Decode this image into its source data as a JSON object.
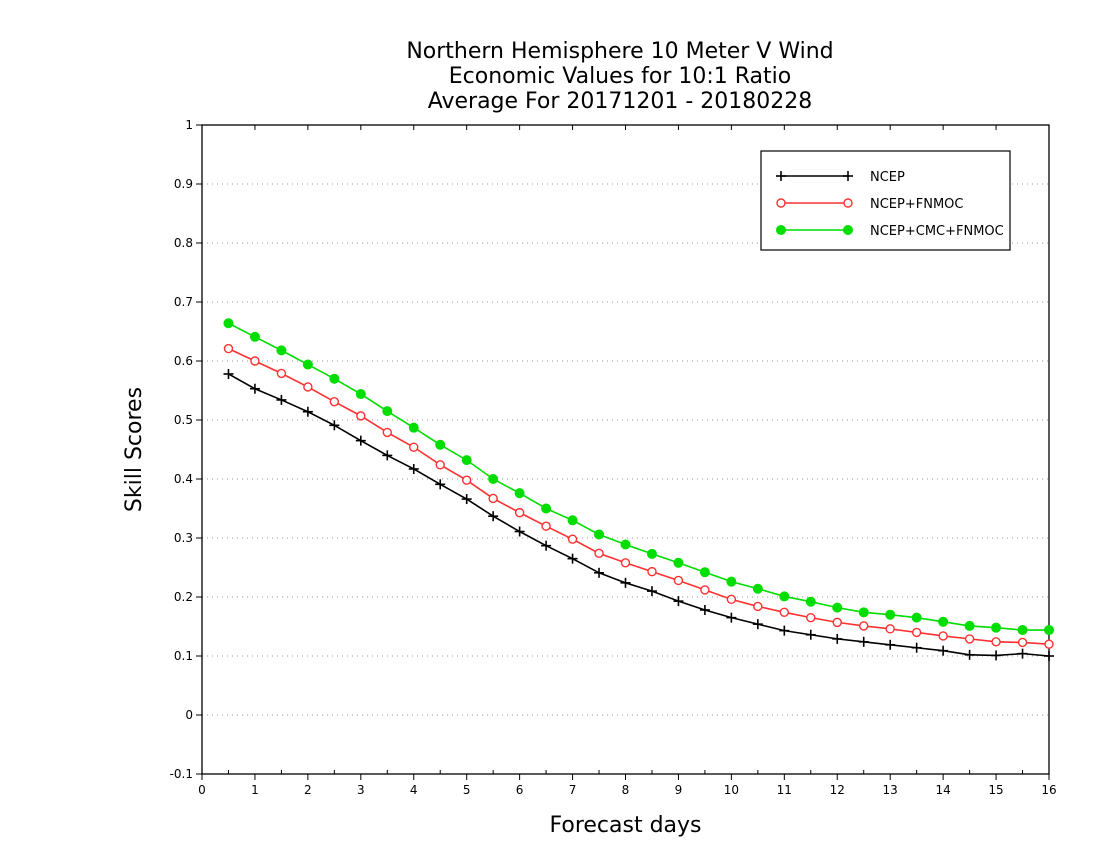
{
  "chart_data": {
    "type": "line",
    "title_lines": [
      "Northern Hemisphere 10 Meter V Wind",
      "Economic Values for 10:1 Ratio",
      "Average For 20171201 - 20180228"
    ],
    "xlabel": "Forecast days",
    "ylabel": "Skill Scores",
    "xlim": [
      0,
      16
    ],
    "ylim": [
      -0.1,
      1
    ],
    "x_ticks": [
      "0",
      "1",
      "2",
      "3",
      "4",
      "5",
      "6",
      "7",
      "8",
      "9",
      "10",
      "11",
      "12",
      "13",
      "14",
      "15",
      "16"
    ],
    "y_ticks": [
      "-0.1",
      "0",
      "0.1",
      "0.2",
      "0.3",
      "0.4",
      "0.5",
      "0.6",
      "0.7",
      "0.8",
      "0.9",
      "1"
    ],
    "grid": "horizontal dotted",
    "legend_position": "top-right",
    "x": [
      0.5,
      1,
      1.5,
      2,
      2.5,
      3,
      3.5,
      4,
      4.5,
      5,
      5.5,
      6,
      6.5,
      7,
      7.5,
      8,
      8.5,
      9,
      9.5,
      10,
      10.5,
      11,
      11.5,
      12,
      12.5,
      13,
      13.5,
      14,
      14.5,
      15,
      15.5,
      16
    ],
    "series": [
      {
        "name": "NCEP",
        "color": "#000000",
        "marker": "plus",
        "values": [
          0.578,
          0.553,
          0.534,
          0.514,
          0.491,
          0.465,
          0.44,
          0.417,
          0.391,
          0.366,
          0.337,
          0.311,
          0.287,
          0.265,
          0.241,
          0.224,
          0.21,
          0.193,
          0.178,
          0.165,
          0.154,
          0.143,
          0.136,
          0.129,
          0.124,
          0.119,
          0.114,
          0.109,
          0.102,
          0.101,
          0.104,
          0.1
        ]
      },
      {
        "name": "NCEP+FNMOC",
        "color": "#ff3030",
        "marker": "open-circle",
        "values": [
          0.621,
          0.6,
          0.579,
          0.556,
          0.531,
          0.507,
          0.479,
          0.454,
          0.424,
          0.398,
          0.367,
          0.343,
          0.32,
          0.298,
          0.274,
          0.258,
          0.243,
          0.228,
          0.212,
          0.196,
          0.184,
          0.174,
          0.165,
          0.157,
          0.151,
          0.146,
          0.14,
          0.134,
          0.129,
          0.124,
          0.123,
          0.12
        ]
      },
      {
        "name": "NCEP+CMC+FNMOC",
        "color": "#00dd00",
        "marker": "filled-circle",
        "values": [
          0.664,
          0.641,
          0.618,
          0.594,
          0.57,
          0.544,
          0.515,
          0.487,
          0.458,
          0.432,
          0.4,
          0.376,
          0.35,
          0.33,
          0.306,
          0.289,
          0.273,
          0.258,
          0.242,
          0.226,
          0.214,
          0.201,
          0.192,
          0.182,
          0.174,
          0.17,
          0.165,
          0.158,
          0.151,
          0.148,
          0.144,
          0.144
        ]
      }
    ]
  }
}
